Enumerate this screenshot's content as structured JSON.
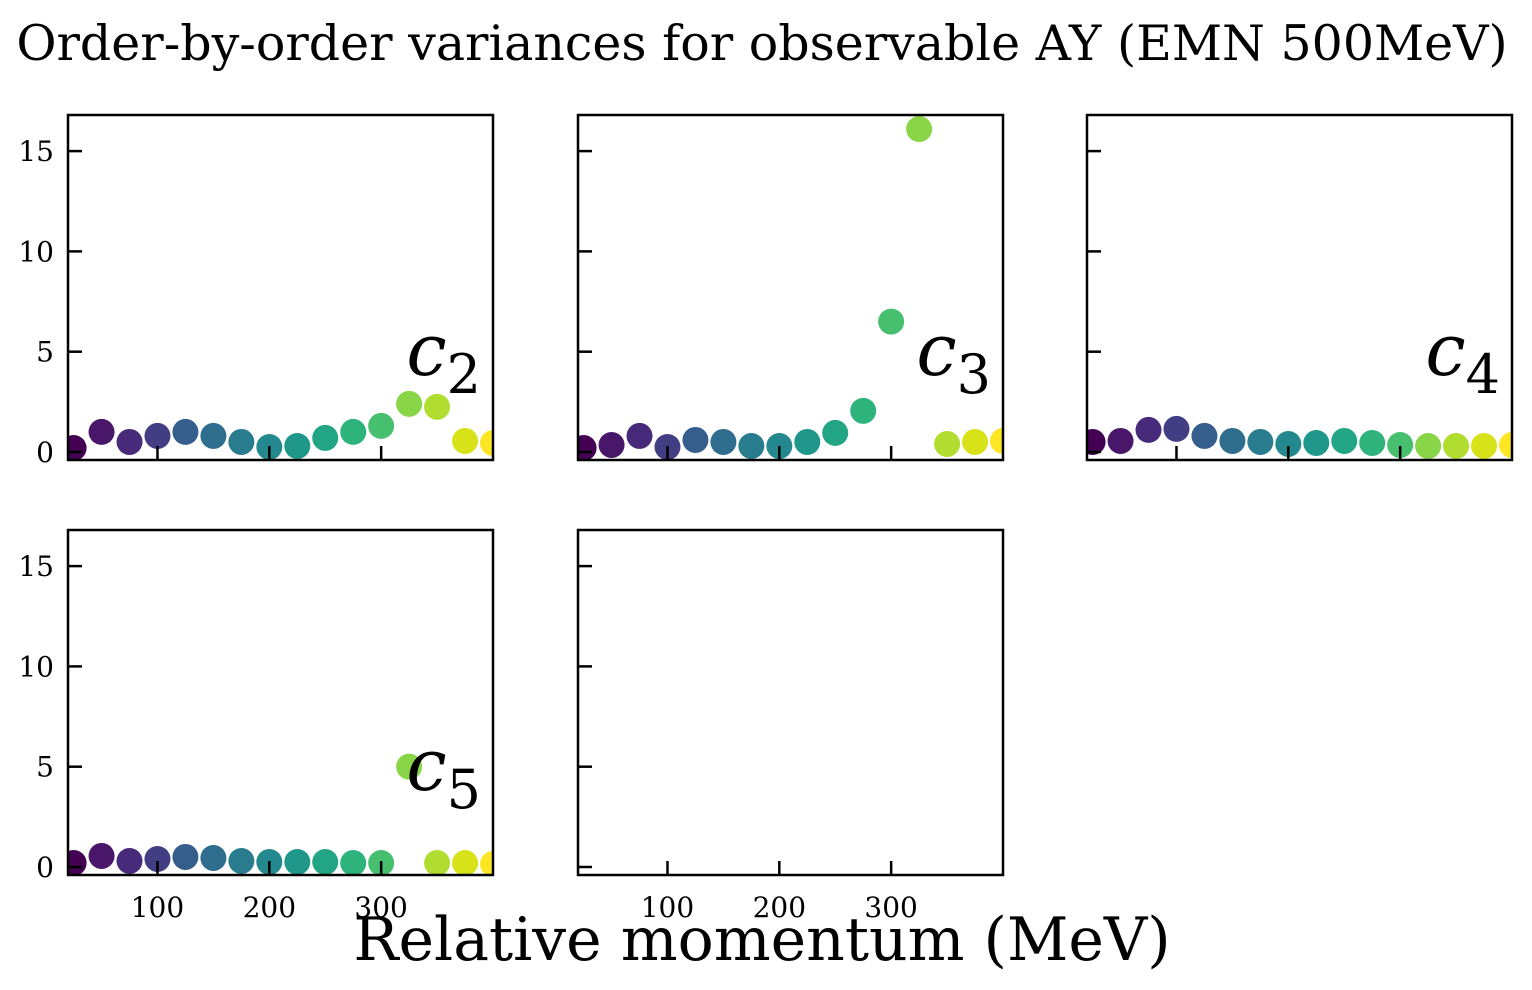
{
  "chart_data": {
    "type": "scatter",
    "title": "Order-by-order variances for observable AY (EMN 500MeV)",
    "xlabel": "Relative momentum (MeV)",
    "ylabel": "",
    "xlim": [
      20,
      400
    ],
    "ylim": [
      -0.4,
      16.8
    ],
    "xticks": [
      100,
      200,
      300
    ],
    "yticks": [
      0,
      5,
      10,
      15
    ],
    "colormap": "viridis",
    "colors": [
      "#440154",
      "#481769",
      "#472a7a",
      "#433d84",
      "#3d4e8a",
      "#355e8d",
      "#2e6d8e",
      "#297b8e",
      "#23898e",
      "#1f978b",
      "#21a585",
      "#2eb37c",
      "#46c06f",
      "#65cb5e",
      "#89d548",
      "#b0dd2f",
      "#d8e219",
      "#fde725"
    ],
    "x": [
      25,
      50,
      75,
      100,
      125,
      150,
      175,
      200,
      225,
      250,
      275,
      300,
      325,
      350,
      375,
      400
    ],
    "panels": [
      {
        "label": "c",
        "subscript": "2",
        "points": [
          [
            25,
            0.2
          ],
          [
            50,
            1.0
          ],
          [
            75,
            0.5
          ],
          [
            100,
            0.8
          ],
          [
            125,
            1.0
          ],
          [
            150,
            0.8
          ],
          [
            175,
            0.5
          ],
          [
            200,
            0.25
          ],
          [
            225,
            0.3
          ],
          [
            250,
            0.7
          ],
          [
            275,
            1.0
          ],
          [
            300,
            1.3
          ],
          [
            325,
            2.4
          ],
          [
            350,
            2.25
          ],
          [
            375,
            0.55
          ],
          [
            400,
            0.45
          ]
        ]
      },
      {
        "label": "c",
        "subscript": "3",
        "points": [
          [
            25,
            0.2
          ],
          [
            50,
            0.35
          ],
          [
            75,
            0.8
          ],
          [
            100,
            0.25
          ],
          [
            125,
            0.6
          ],
          [
            150,
            0.5
          ],
          [
            175,
            0.3
          ],
          [
            200,
            0.3
          ],
          [
            225,
            0.5
          ],
          [
            250,
            0.95
          ],
          [
            275,
            2.05
          ],
          [
            300,
            6.5
          ],
          [
            325,
            16.1
          ],
          [
            350,
            0.4
          ],
          [
            375,
            0.5
          ],
          [
            400,
            0.55
          ]
        ]
      },
      {
        "label": "c",
        "subscript": "4",
        "points": [
          [
            25,
            0.5
          ],
          [
            50,
            0.55
          ],
          [
            75,
            1.1
          ],
          [
            100,
            1.15
          ],
          [
            125,
            0.8
          ],
          [
            150,
            0.55
          ],
          [
            175,
            0.5
          ],
          [
            200,
            0.4
          ],
          [
            225,
            0.45
          ],
          [
            250,
            0.55
          ],
          [
            275,
            0.45
          ],
          [
            300,
            0.35
          ],
          [
            325,
            0.3
          ],
          [
            350,
            0.3
          ],
          [
            375,
            0.3
          ],
          [
            400,
            0.35
          ]
        ]
      },
      {
        "label": "c",
        "subscript": "5",
        "points": [
          [
            25,
            0.2
          ],
          [
            50,
            0.55
          ],
          [
            75,
            0.3
          ],
          [
            100,
            0.4
          ],
          [
            125,
            0.5
          ],
          [
            150,
            0.45
          ],
          [
            175,
            0.3
          ],
          [
            200,
            0.25
          ],
          [
            225,
            0.25
          ],
          [
            250,
            0.25
          ],
          [
            275,
            0.2
          ],
          [
            300,
            0.2
          ],
          [
            325,
            5.0
          ],
          [
            350,
            0.2
          ],
          [
            375,
            0.2
          ],
          [
            400,
            0.15
          ]
        ]
      },
      {
        "label": "",
        "subscript": "",
        "points": []
      }
    ]
  }
}
